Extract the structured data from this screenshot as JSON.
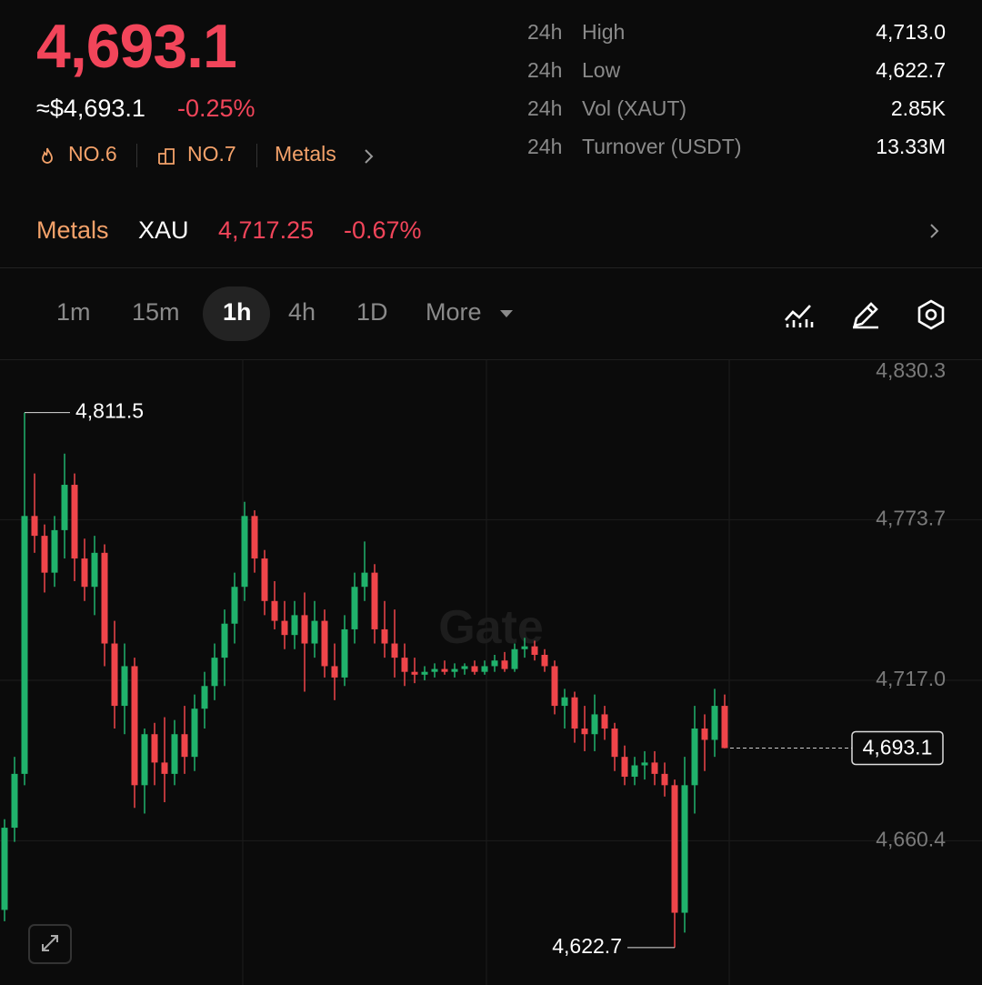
{
  "header": {
    "price": "4,693.1",
    "usd_price": "≈$4,693.1",
    "change": "-0.25%",
    "rank_hot": "NO.6",
    "rank_cap": "NO.7",
    "category": "Metals"
  },
  "stats": [
    {
      "period": "24h",
      "label": "High",
      "value": "4,713.0"
    },
    {
      "period": "24h",
      "label": "Low",
      "value": "4,622.7"
    },
    {
      "period": "24h",
      "label": "Vol (XAUT)",
      "value": "2.85K"
    },
    {
      "period": "24h",
      "label": "Turnover (USDT)",
      "value": "13.33M"
    }
  ],
  "underlying": {
    "category": "Metals",
    "symbol": "XAU",
    "price": "4,717.25",
    "change": "-0.67%"
  },
  "intervals": [
    "1m",
    "15m",
    "1h",
    "4h",
    "1D",
    "More"
  ],
  "active_interval": 2,
  "chart_data": {
    "type": "candlestick",
    "watermark": "Gate",
    "up_color": "#20b26c",
    "down_color": "#ef454a",
    "ylim": [
      4609.5,
      4830.3
    ],
    "yticks": [
      {
        "value": 4830.3,
        "label": "4,830.3"
      },
      {
        "value": 4773.7,
        "label": "4,773.7"
      },
      {
        "value": 4717.0,
        "label": "4,717.0"
      },
      {
        "value": 4660.4,
        "label": "4,660.4"
      }
    ],
    "high_label": {
      "value": 4811.5,
      "label": "4,811.5"
    },
    "low_label": {
      "value": 4622.7,
      "label": "4,622.7"
    },
    "last_price": {
      "value": 4693.1,
      "label": "4,693.1"
    },
    "open": [
      4636,
      4665,
      4684,
      4775,
      4768,
      4755,
      4770,
      4786,
      4760,
      4750,
      4762,
      4730,
      4708,
      4722,
      4680,
      4698,
      4688,
      4684,
      4698,
      4690,
      4707,
      4715,
      4725,
      4737,
      4750,
      4775,
      4760,
      4745,
      4738,
      4733,
      4740,
      4730,
      4738,
      4722,
      4718,
      4735,
      4750,
      4755,
      4735,
      4730,
      4725,
      4720,
      4719,
      4720,
      4721,
      4720,
      4721,
      4722,
      4720,
      4722,
      4724,
      4721,
      4728,
      4729,
      4726,
      4722,
      4708,
      4711,
      4700,
      4698,
      4705,
      4700,
      4690,
      4683,
      4687,
      4688,
      4684,
      4680,
      4635,
      4680,
      4700,
      4696,
      4708
    ],
    "high": [
      4668,
      4690,
      4811.5,
      4790,
      4772,
      4775,
      4797,
      4790,
      4767,
      4768,
      4765,
      4738,
      4730,
      4725,
      4700,
      4702,
      4704,
      4703,
      4708,
      4712,
      4720,
      4730,
      4742,
      4755,
      4780,
      4777,
      4763,
      4752,
      4745,
      4745,
      4748,
      4745,
      4742,
      4730,
      4740,
      4755,
      4766,
      4758,
      4745,
      4742,
      4730,
      4725,
      4722,
      4723,
      4724,
      4723,
      4723,
      4724,
      4724,
      4726,
      4727,
      4730,
      4732,
      4731,
      4728,
      4724,
      4714,
      4713,
      4708,
      4712,
      4708,
      4702,
      4694,
      4690,
      4692,
      4692,
      4688,
      4682,
      4690,
      4708,
      4705,
      4714,
      4712
    ],
    "low": [
      4632,
      4660,
      4680,
      4762,
      4748,
      4750,
      4760,
      4752,
      4745,
      4740,
      4722,
      4700,
      4698,
      4672,
      4670,
      4680,
      4674,
      4680,
      4684,
      4685,
      4700,
      4710,
      4715,
      4730,
      4745,
      4755,
      4740,
      4735,
      4728,
      4728,
      4713,
      4725,
      4718,
      4710,
      4715,
      4730,
      4745,
      4730,
      4725,
      4718,
      4715,
      4716,
      4717,
      4718,
      4719,
      4718,
      4719,
      4719,
      4719,
      4720,
      4720,
      4720,
      4725,
      4724,
      4720,
      4705,
      4700,
      4695,
      4692,
      4692,
      4696,
      4685,
      4680,
      4680,
      4682,
      4680,
      4676,
      4622.7,
      4628,
      4670,
      4685,
      4690,
      4693
    ],
    "close": [
      4665,
      4684,
      4775,
      4768,
      4755,
      4770,
      4786,
      4760,
      4750,
      4762,
      4730,
      4708,
      4722,
      4680,
      4698,
      4688,
      4684,
      4698,
      4690,
      4707,
      4715,
      4725,
      4737,
      4750,
      4775,
      4760,
      4745,
      4738,
      4733,
      4740,
      4730,
      4738,
      4722,
      4718,
      4735,
      4750,
      4755,
      4735,
      4730,
      4725,
      4720,
      4719,
      4720,
      4721,
      4720,
      4721,
      4722,
      4720,
      4722,
      4724,
      4721,
      4728,
      4729,
      4726,
      4722,
      4708,
      4711,
      4700,
      4698,
      4705,
      4700,
      4690,
      4683,
      4687,
      4688,
      4684,
      4680,
      4635,
      4680,
      4700,
      4696,
      4708,
      4693.1
    ]
  }
}
